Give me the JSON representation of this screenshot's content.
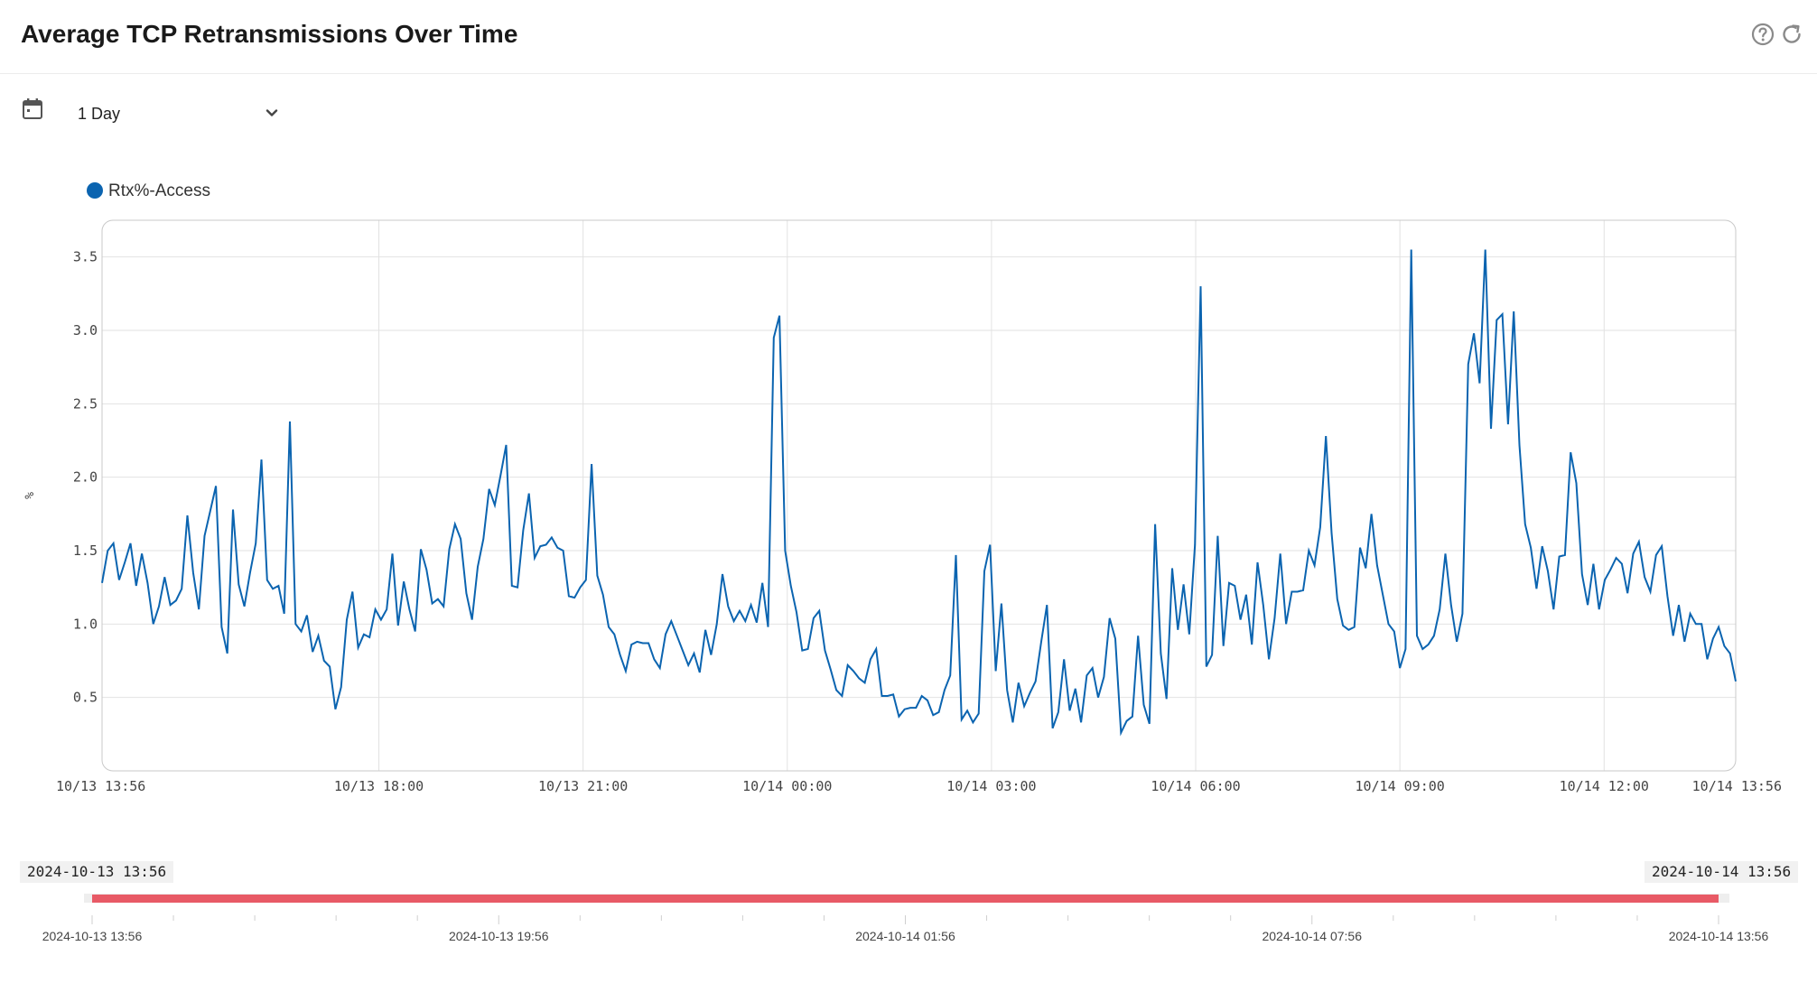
{
  "header": {
    "title": "Average TCP Retransmissions Over Time",
    "help_icon": "help-circle-icon",
    "refresh_icon": "refresh-icon"
  },
  "toolbar": {
    "calendar_icon": "calendar-icon",
    "range_value": "1 Day",
    "range_chevron_icon": "chevron-down-icon"
  },
  "colors": {
    "series": "#0b64b0",
    "brush": "#e85a66",
    "grid": "#e2e2e2",
    "frame": "#c9c9c9"
  },
  "chart_data": {
    "type": "line",
    "ylabel": "%",
    "xlabel": "",
    "ylim": [
      0,
      3.75
    ],
    "y_ticks": [
      "0.5",
      "1.0",
      "1.5",
      "2.0",
      "2.5",
      "3.0",
      "3.5"
    ],
    "x_ticks": [
      "10/13 13:56",
      "10/13 18:00",
      "10/13 21:00",
      "10/14 00:00",
      "10/14 03:00",
      "10/14 06:00",
      "10/14 09:00",
      "10/14 12:00",
      "10/14 13:56"
    ],
    "x_start": "2024-10-13 13:56",
    "x_end": "2024-10-14 13:56",
    "x_vertical_gridlines": true,
    "legend_position": "top-left",
    "series": [
      {
        "name": "Rtx%-Access",
        "values": [
          1.28,
          1.5,
          1.55,
          1.3,
          1.42,
          1.55,
          1.26,
          1.48,
          1.28,
          1.0,
          1.12,
          1.32,
          1.13,
          1.16,
          1.24,
          1.74,
          1.35,
          1.1,
          1.6,
          1.77,
          1.94,
          0.98,
          0.8,
          1.78,
          1.27,
          1.12,
          1.35,
          1.55,
          2.12,
          1.3,
          1.24,
          1.26,
          1.07,
          2.38,
          1.0,
          0.95,
          1.06,
          0.81,
          0.92,
          0.75,
          0.71,
          0.42,
          0.57,
          1.03,
          1.22,
          0.84,
          0.93,
          0.91,
          1.1,
          1.03,
          1.1,
          1.48,
          0.99,
          1.29,
          1.1,
          0.95,
          1.51,
          1.37,
          1.14,
          1.17,
          1.12,
          1.51,
          1.68,
          1.58,
          1.21,
          1.03,
          1.39,
          1.58,
          1.92,
          1.81,
          2.01,
          2.22,
          1.26,
          1.25,
          1.64,
          1.89,
          1.45,
          1.53,
          1.54,
          1.59,
          1.52,
          1.5,
          1.19,
          1.18,
          1.25,
          1.3,
          2.09,
          1.33,
          1.2,
          0.98,
          0.93,
          0.79,
          0.68,
          0.86,
          0.88,
          0.87,
          0.87,
          0.76,
          0.7,
          0.93,
          1.02,
          0.92,
          0.82,
          0.72,
          0.8,
          0.67,
          0.96,
          0.79,
          1.0,
          1.34,
          1.12,
          1.02,
          1.09,
          1.02,
          1.13,
          1.01,
          1.28,
          0.98,
          2.95,
          3.1,
          1.5,
          1.26,
          1.08,
          0.82,
          0.83,
          1.04,
          1.09,
          0.82,
          0.69,
          0.55,
          0.51,
          0.72,
          0.68,
          0.63,
          0.6,
          0.76,
          0.83,
          0.51,
          0.51,
          0.52,
          0.37,
          0.42,
          0.43,
          0.43,
          0.51,
          0.48,
          0.38,
          0.4,
          0.55,
          0.65,
          1.47,
          0.35,
          0.41,
          0.33,
          0.39,
          1.36,
          1.54,
          0.68,
          1.14,
          0.55,
          0.33,
          0.6,
          0.44,
          0.53,
          0.61,
          0.88,
          1.13,
          0.29,
          0.4,
          0.76,
          0.41,
          0.56,
          0.33,
          0.65,
          0.7,
          0.5,
          0.64,
          1.04,
          0.9,
          0.26,
          0.34,
          0.37,
          0.92,
          0.45,
          0.32,
          1.68,
          0.8,
          0.49,
          1.38,
          0.96,
          1.27,
          0.93,
          1.54,
          3.3,
          0.71,
          0.79,
          1.6,
          0.85,
          1.28,
          1.26,
          1.03,
          1.2,
          0.86,
          1.42,
          1.13,
          0.76,
          1.04,
          1.48,
          1.0,
          1.22,
          1.22,
          1.23,
          1.5,
          1.4,
          1.66,
          2.28,
          1.62,
          1.17,
          0.99,
          0.96,
          0.98,
          1.52,
          1.38,
          1.75,
          1.4,
          1.2,
          1.0,
          0.95,
          0.7,
          0.83,
          3.55,
          0.92,
          0.83,
          0.86,
          0.92,
          1.1,
          1.48,
          1.13,
          0.88,
          1.07,
          2.77,
          2.98,
          2.64,
          3.55,
          2.33,
          3.07,
          3.11,
          2.36,
          3.13,
          2.22,
          1.68,
          1.52,
          1.24,
          1.53,
          1.36,
          1.1,
          1.46,
          1.47,
          2.17,
          1.96,
          1.34,
          1.13,
          1.41,
          1.1,
          1.3,
          1.37,
          1.45,
          1.41,
          1.21,
          1.48,
          1.56,
          1.32,
          1.22,
          1.47,
          1.53,
          1.19,
          0.92,
          1.13,
          0.88,
          1.07,
          1.0,
          1.0,
          0.76,
          0.9,
          0.98,
          0.85,
          0.8,
          0.61
        ]
      }
    ]
  },
  "navigator": {
    "start_label": "2024-10-13 13:56",
    "end_label": "2024-10-14 13:56",
    "axis_labels": [
      "2024-10-13 13:56",
      "2024-10-13 19:56",
      "2024-10-14 01:56",
      "2024-10-14 07:56",
      "2024-10-14 13:56"
    ]
  }
}
